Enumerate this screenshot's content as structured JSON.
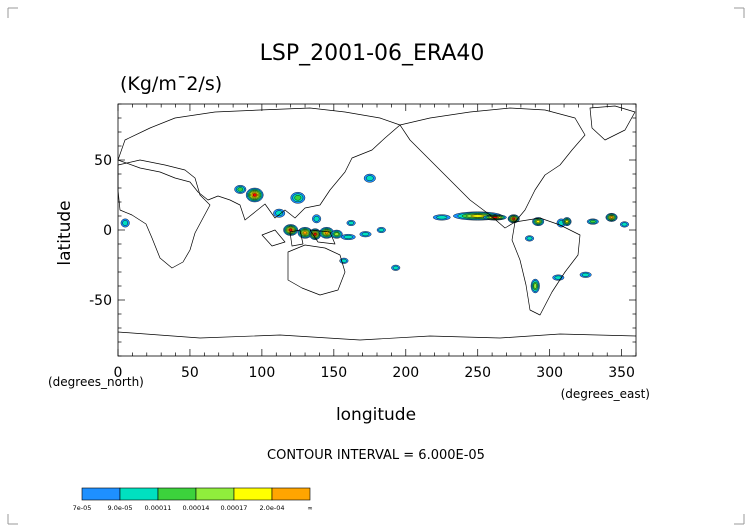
{
  "chart_data": {
    "type": "heatmap",
    "title": "LSP_2001-06_ERA40",
    "units": "(Kg/m¯2/s)",
    "xlabel": "longitude",
    "ylabel": "latitude",
    "x_unit_note": "(degrees_east)",
    "x_origin_note": "(degrees_north)",
    "xlim": [
      0,
      360
    ],
    "ylim": [
      -90,
      90
    ],
    "x_ticks": [
      0,
      50,
      100,
      150,
      200,
      250,
      300,
      350
    ],
    "y_ticks": [
      50,
      0,
      -50
    ],
    "contour_interval_text": "CONTOUR INTERVAL = 6.000E-05",
    "colorbar": {
      "labels": [
        "7e-05",
        "9.0e-05",
        "0.00011",
        "0.00014",
        "0.00017",
        "2.0e-04",
        "∞"
      ],
      "colors": [
        "#1e90ff",
        "#00e0c0",
        "#3cd23c",
        "#90ee3c",
        "#ffff00",
        "#ffa500",
        "#ff0000",
        "#ffffff"
      ]
    },
    "features": [
      {
        "lon": 95,
        "lat": 25,
        "rx": 6,
        "ry": 5,
        "level": 6
      },
      {
        "lon": 85,
        "lat": 29,
        "rx": 4,
        "ry": 3,
        "level": 2
      },
      {
        "lon": 175,
        "lat": 37,
        "rx": 4,
        "ry": 3,
        "level": 1
      },
      {
        "lon": 125,
        "lat": 23,
        "rx": 5,
        "ry": 4,
        "level": 2
      },
      {
        "lon": 112,
        "lat": 12,
        "rx": 4,
        "ry": 3,
        "level": 1
      },
      {
        "lon": 5,
        "lat": 5,
        "rx": 3,
        "ry": 3,
        "level": 1
      },
      {
        "lon": 138,
        "lat": 8,
        "rx": 3,
        "ry": 3,
        "level": 1
      },
      {
        "lon": 120,
        "lat": 0,
        "rx": 5,
        "ry": 4,
        "level": 6
      },
      {
        "lon": 130,
        "lat": -2,
        "rx": 5,
        "ry": 4,
        "level": 5
      },
      {
        "lon": 137,
        "lat": -3,
        "rx": 4,
        "ry": 4,
        "level": 6
      },
      {
        "lon": 145,
        "lat": -2,
        "rx": 5,
        "ry": 4,
        "level": 5
      },
      {
        "lon": 152,
        "lat": -3,
        "rx": 4,
        "ry": 3,
        "level": 3
      },
      {
        "lon": 160,
        "lat": -5,
        "rx": 5,
        "ry": 2,
        "level": 1
      },
      {
        "lon": 172,
        "lat": -3,
        "rx": 4,
        "ry": 2,
        "level": 1
      },
      {
        "lon": 183,
        "lat": 0,
        "rx": 3,
        "ry": 2,
        "level": 1
      },
      {
        "lon": 162,
        "lat": 5,
        "rx": 3,
        "ry": 2,
        "level": 1
      },
      {
        "lon": 157,
        "lat": -22,
        "rx": 3,
        "ry": 2,
        "level": 1
      },
      {
        "lon": 193,
        "lat": -27,
        "rx": 3,
        "ry": 2,
        "level": 1
      },
      {
        "lon": 225,
        "lat": 9,
        "rx": 6,
        "ry": 2,
        "level": 1
      },
      {
        "lon": 250,
        "lat": 10,
        "rx": 17,
        "ry": 3,
        "level": 4
      },
      {
        "lon": 262,
        "lat": 9,
        "rx": 8,
        "ry": 2,
        "level": 6
      },
      {
        "lon": 275,
        "lat": 8,
        "rx": 4,
        "ry": 3,
        "level": 6
      },
      {
        "lon": 292,
        "lat": 6,
        "rx": 4,
        "ry": 3,
        "level": 4
      },
      {
        "lon": 286,
        "lat": -6,
        "rx": 3,
        "ry": 2,
        "level": 1
      },
      {
        "lon": 308,
        "lat": 5,
        "rx": 3,
        "ry": 3,
        "level": 1
      },
      {
        "lon": 312,
        "lat": 6,
        "rx": 3,
        "ry": 3,
        "level": 4
      },
      {
        "lon": 330,
        "lat": 6,
        "rx": 4,
        "ry": 2,
        "level": 2
      },
      {
        "lon": 343,
        "lat": 9,
        "rx": 4,
        "ry": 3,
        "level": 5
      },
      {
        "lon": 352,
        "lat": 4,
        "rx": 3,
        "ry": 2,
        "level": 1
      },
      {
        "lon": 290,
        "lat": -40,
        "rx": 3,
        "ry": 5,
        "level": 3
      },
      {
        "lon": 306,
        "lat": -34,
        "rx": 4,
        "ry": 2,
        "level": 1
      },
      {
        "lon": 325,
        "lat": -32,
        "rx": 4,
        "ry": 2,
        "level": 1
      }
    ],
    "grid": false,
    "legend_placement": "bottom-left"
  }
}
